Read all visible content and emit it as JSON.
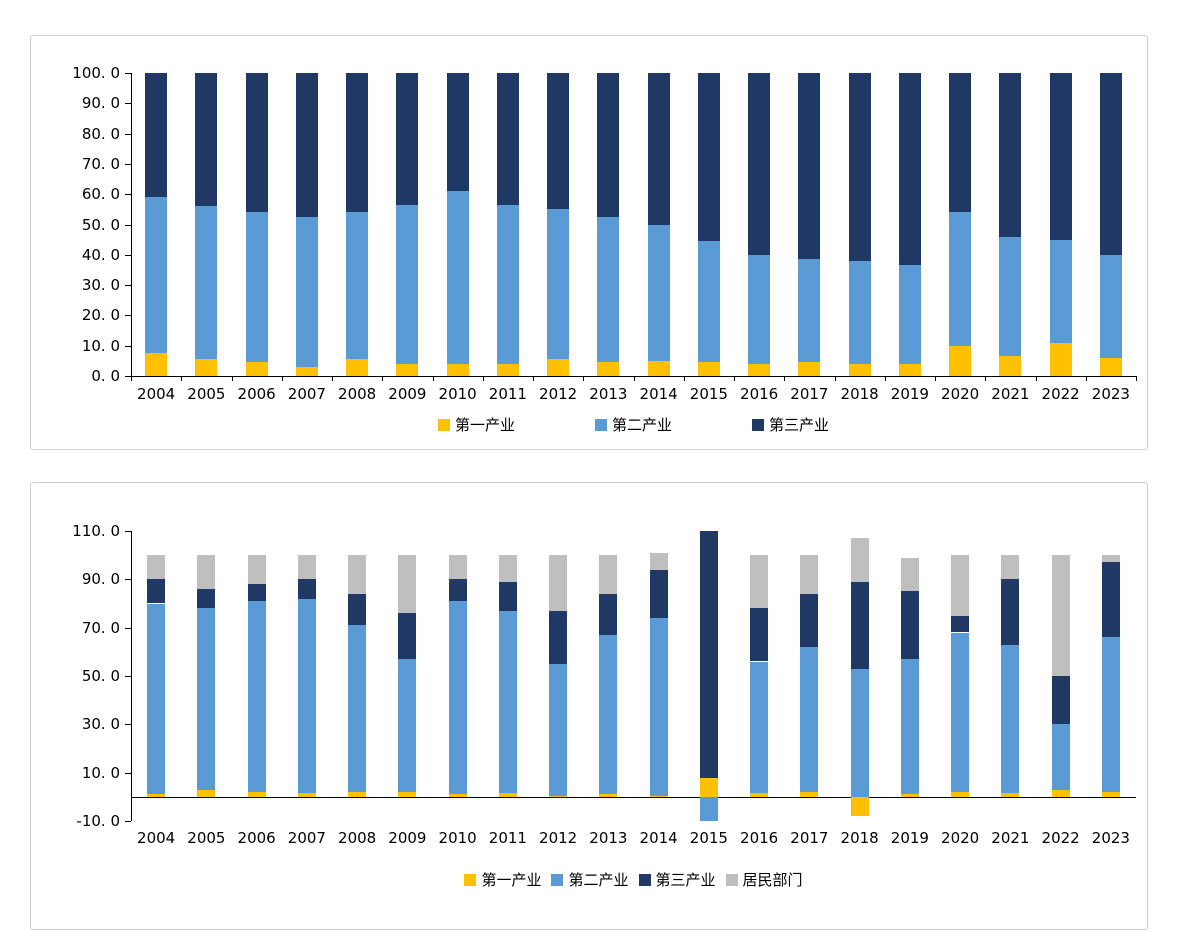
{
  "colors": {
    "primary_industry": "#FFC000",
    "secondary_industry": "#5B9BD5",
    "tertiary_industry": "#1F3864",
    "household": "#BFBFBF",
    "axis": "#000000",
    "panel_border": "#cfcfcf"
  },
  "chart_data": [
    {
      "type": "bar",
      "stacked": true,
      "title": "",
      "xlabel": "",
      "ylabel": "",
      "ylim": [
        0,
        100
      ],
      "grid": false,
      "legend_position": "bottom",
      "categories": [
        "2004",
        "2005",
        "2006",
        "2007",
        "2008",
        "2009",
        "2010",
        "2011",
        "2012",
        "2013",
        "2014",
        "2015",
        "2016",
        "2017",
        "2018",
        "2019",
        "2020",
        "2021",
        "2022",
        "2023"
      ],
      "yticks": [
        {
          "value": 100,
          "label": "100. 0"
        },
        {
          "value": 90,
          "label": "90. 0"
        },
        {
          "value": 80,
          "label": "80. 0"
        },
        {
          "value": 70,
          "label": "70. 0"
        },
        {
          "value": 60,
          "label": "60. 0"
        },
        {
          "value": 50,
          "label": "50. 0"
        },
        {
          "value": 40,
          "label": "40. 0"
        },
        {
          "value": 30,
          "label": "30. 0"
        },
        {
          "value": 20,
          "label": "20. 0"
        },
        {
          "value": 10,
          "label": "10. 0"
        },
        {
          "value": 0,
          "label": "0. 0"
        }
      ],
      "series": [
        {
          "name": "第一产业",
          "color_key": "primary_industry",
          "values": [
            7.5,
            5.5,
            4.5,
            3,
            5.5,
            4,
            4,
            4,
            5.5,
            4.5,
            5,
            4.5,
            4,
            4.5,
            4,
            4,
            10,
            6.5,
            11,
            6
          ]
        },
        {
          "name": "第二产业",
          "color_key": "secondary_industry",
          "values": [
            51.5,
            50.5,
            49.5,
            49.5,
            48.5,
            52.5,
            57,
            52.5,
            49.5,
            48,
            45,
            40,
            36,
            34,
            34,
            32.5,
            44,
            39.5,
            34,
            34
          ]
        },
        {
          "name": "第三产业",
          "color_key": "tertiary_industry",
          "values": [
            41,
            44,
            46,
            47.5,
            46,
            43.5,
            39,
            43.5,
            45,
            47.5,
            50,
            55.5,
            60,
            61.5,
            62,
            63.5,
            46,
            54,
            55,
            60
          ]
        }
      ]
    },
    {
      "type": "bar",
      "stacked": true,
      "title": "",
      "xlabel": "",
      "ylabel": "",
      "ylim": [
        -10,
        110
      ],
      "grid": false,
      "legend_position": "bottom",
      "categories": [
        "2004",
        "2005",
        "2006",
        "2007",
        "2008",
        "2009",
        "2010",
        "2011",
        "2012",
        "2013",
        "2014",
        "2015",
        "2016",
        "2017",
        "2018",
        "2019",
        "2020",
        "2021",
        "2022",
        "2023"
      ],
      "yticks": [
        {
          "value": 110,
          "label": "110. 0"
        },
        {
          "value": 90,
          "label": "90. 0"
        },
        {
          "value": 70,
          "label": "70. 0"
        },
        {
          "value": 50,
          "label": "50. 0"
        },
        {
          "value": 30,
          "label": "30. 0"
        },
        {
          "value": 10,
          "label": "10. 0"
        },
        {
          "value": -10,
          "label": "-10. 0"
        }
      ],
      "series": [
        {
          "name": "第一产业",
          "color_key": "primary_industry",
          "values": [
            1,
            3,
            2,
            1.5,
            2,
            2,
            1,
            1.5,
            0.5,
            1,
            0.5,
            8,
            1.5,
            2,
            -8,
            1,
            2,
            1.5,
            3,
            2
          ]
        },
        {
          "name": "第二产业",
          "color_key": "secondary_industry",
          "values": [
            79,
            75,
            79,
            80.5,
            69,
            55,
            80,
            75.5,
            54.5,
            66,
            73.5,
            -10,
            54.5,
            60,
            53,
            56,
            66,
            61.5,
            27,
            64
          ]
        },
        {
          "name": "第三产业",
          "color_key": "tertiary_industry",
          "values": [
            10,
            8,
            7,
            8,
            13,
            19,
            9,
            12,
            22,
            17,
            20,
            102,
            22,
            22,
            36,
            28,
            7,
            27,
            20,
            31
          ]
        },
        {
          "name": "居民部门",
          "color_key": "household",
          "values": [
            10,
            14,
            12,
            10,
            16,
            24,
            10,
            11,
            23,
            16,
            7,
            0,
            22,
            16,
            18,
            14,
            25,
            10,
            50,
            3
          ]
        }
      ]
    }
  ]
}
